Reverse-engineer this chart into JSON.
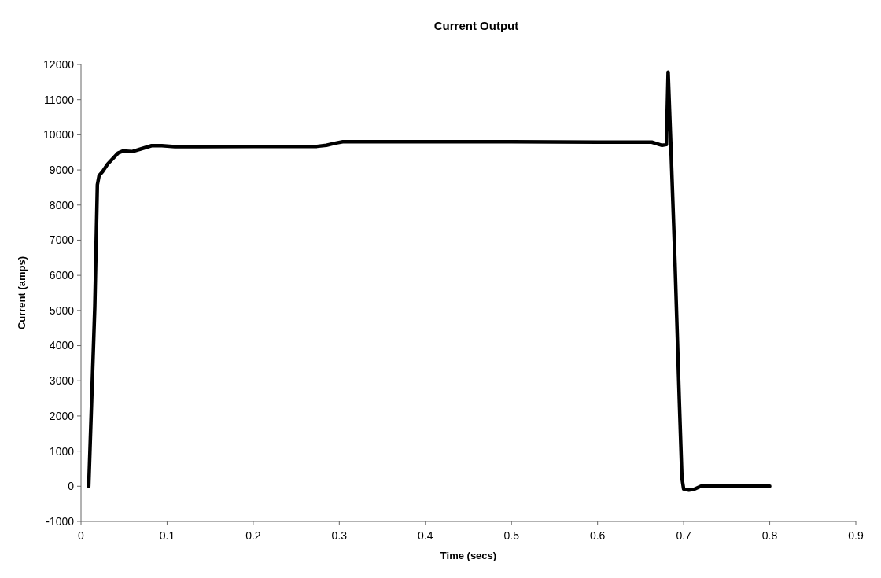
{
  "chart_data": {
    "type": "line",
    "title": "Current Output",
    "xlabel": "Time (secs)",
    "ylabel": "Current (amps)",
    "xlim": [
      0,
      0.9
    ],
    "xticks": [
      0,
      0.1,
      0.2,
      0.3,
      0.4,
      0.5,
      0.6,
      0.7,
      0.8,
      0.9
    ],
    "ylim": [
      -1000,
      12000
    ],
    "yticks": [
      -1000,
      0,
      1000,
      2000,
      3000,
      4000,
      5000,
      6000,
      7000,
      8000,
      9000,
      10000,
      11000,
      12000
    ],
    "marker": "none",
    "line_style": "solid",
    "series": [
      {
        "color": "#000000",
        "x": [
          0.009,
          0.016,
          0.019,
          0.021,
          0.025,
          0.031,
          0.043,
          0.049,
          0.059,
          0.07,
          0.082,
          0.094,
          0.109,
          0.2,
          0.274,
          0.285,
          0.295,
          0.304,
          0.4,
          0.5,
          0.6,
          0.663,
          0.675,
          0.68,
          0.682,
          0.685,
          0.69,
          0.695,
          0.698,
          0.7,
          0.706,
          0.712,
          0.72,
          0.76,
          0.8
        ],
        "values": [
          0,
          5100,
          8580,
          8840,
          8950,
          9170,
          9480,
          9540,
          9520,
          9600,
          9690,
          9690,
          9660,
          9670,
          9670,
          9700,
          9760,
          9800,
          9800,
          9800,
          9790,
          9790,
          9700,
          9720,
          11780,
          9800,
          6350,
          2430,
          240,
          -80,
          -110,
          -90,
          0,
          0,
          0
        ]
      }
    ]
  }
}
